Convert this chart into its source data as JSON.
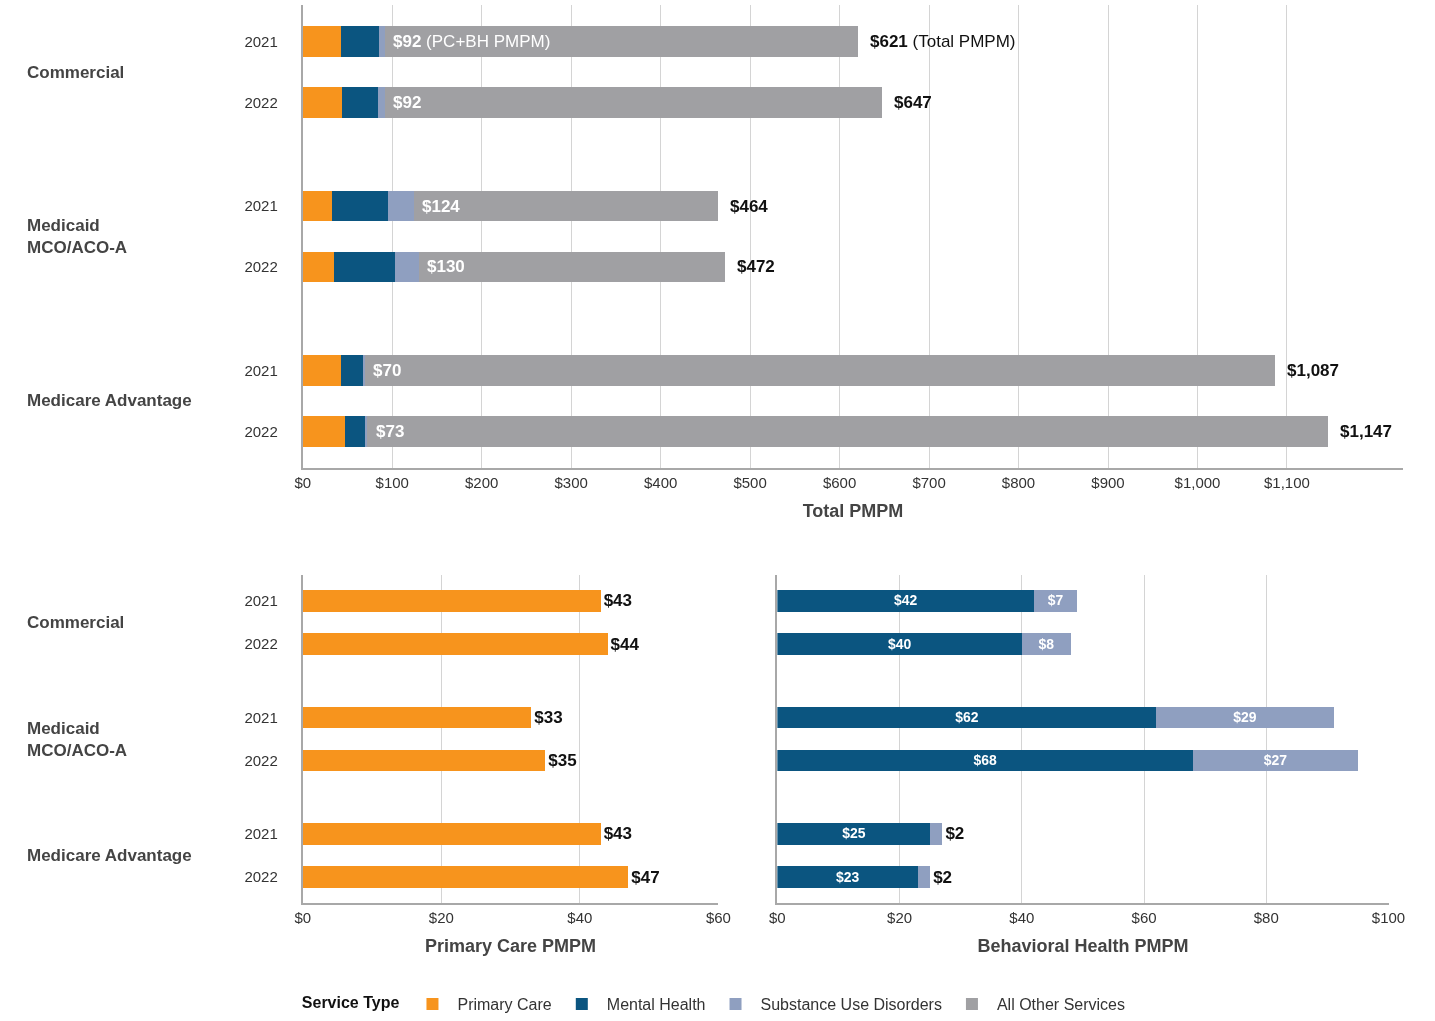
{
  "chart_data": [
    {
      "type": "bar",
      "orientation": "horizontal",
      "stacked": true,
      "xlabel": "Total PMPM",
      "legend_title": "Service Type",
      "legend": "bottom",
      "grid": "x",
      "categories": [
        "2021",
        "2022",
        "2021",
        "2022",
        "2021",
        "2022"
      ],
      "annotations": [
        "Commercial",
        "Medicaid\nMCO/ACO-A",
        "Medicare Advantage",
        {
          "text": "$92 (PC+BH PMPM)",
          "x": 92
        },
        {
          "text": "$92",
          "x": 92
        },
        {
          "text": "$124",
          "x": 124
        },
        {
          "text": "$130",
          "x": 130
        },
        {
          "text": "$70",
          "x": 70
        },
        {
          "text": "$73",
          "x": 73
        }
      ],
      "series": [
        {
          "name": "Primary Care",
          "color": "#f7941d",
          "values": [
            43,
            44,
            33,
            35,
            43,
            47
          ]
        },
        {
          "name": "Mental Health",
          "color": "#0b5580",
          "values": [
            42,
            40,
            62,
            68,
            25,
            23
          ]
        },
        {
          "name": "Substance Use Disorders",
          "color": "#8f9fc0",
          "values": [
            7,
            8,
            29,
            27,
            2,
            2
          ]
        },
        {
          "name": "All Other Services",
          "color": "#a0a0a3",
          "values": [
            529,
            555,
            340,
            342,
            1017,
            1074
          ]
        }
      ],
      "totals": [
        "$621 (Total PMPM)",
        "$647",
        "$464",
        "$472",
        "$1,087",
        "$1,147"
      ],
      "xlim": [
        0,
        1230
      ],
      "xticks": [
        {
          "value": 0,
          "label": "$0"
        },
        {
          "value": 100,
          "label": "$100"
        },
        {
          "value": 200,
          "label": "$200"
        },
        {
          "value": 300,
          "label": "$300"
        },
        {
          "value": 400,
          "label": "$400"
        },
        {
          "value": 500,
          "label": "$500"
        },
        {
          "value": 600,
          "label": "$600"
        },
        {
          "value": 700,
          "label": "$700"
        },
        {
          "value": 800,
          "label": "$800"
        },
        {
          "value": 900,
          "label": "$900"
        },
        {
          "value": 1000,
          "label": "$1,000"
        },
        {
          "value": 1100,
          "label": "$1,100"
        }
      ]
    },
    {
      "type": "bar",
      "orientation": "horizontal",
      "xlabel": "Primary Care PMPM",
      "grid": "x",
      "categories": [
        "2021",
        "2022",
        "2021",
        "2022",
        "2021",
        "2022"
      ],
      "annotations": [
        "Commercial",
        "Medicaid\nMCO/ACO-A",
        "Medicare Advantage"
      ],
      "series": [
        {
          "color": "#f7941d",
          "values": [
            43,
            44,
            33,
            35,
            43,
            47
          ],
          "value_labels": [
            "$43",
            "$44",
            "$33",
            "$35",
            "$43",
            "$47"
          ]
        }
      ],
      "xlim": [
        0,
        60
      ],
      "xticks": [
        {
          "value": 0,
          "label": "$0"
        },
        {
          "value": 20,
          "label": "$20"
        },
        {
          "value": 40,
          "label": "$40"
        },
        {
          "value": 60,
          "label": "$60"
        }
      ]
    },
    {
      "type": "bar",
      "orientation": "horizontal",
      "stacked": true,
      "xlabel": "Behavioral Health PMPM",
      "grid": "x",
      "tick_labels": "x",
      "categories": [
        "2021",
        "2022",
        "2021",
        "2022",
        "2021",
        "2022"
      ],
      "series": [
        {
          "color": "#0b5580",
          "values": [
            42,
            40,
            62,
            68,
            25,
            23
          ],
          "value_labels": [
            "$42",
            "$40",
            "$62",
            "$68",
            "$25",
            "$23"
          ]
        },
        {
          "color": "#8f9fc0",
          "values": [
            7,
            8,
            29,
            27,
            2,
            2
          ],
          "value_labels": [
            "$7",
            "$8",
            "$29",
            "$27",
            "$2",
            "$2"
          ]
        }
      ],
      "xlim": [
        0,
        100
      ],
      "xticks": [
        {
          "value": 0,
          "label": "$0"
        },
        {
          "value": 20,
          "label": "$20"
        },
        {
          "value": 40,
          "label": "$40"
        },
        {
          "value": 60,
          "label": "$60"
        },
        {
          "value": 80,
          "label": "$80"
        },
        {
          "value": 100,
          "label": "$100"
        }
      ]
    }
  ]
}
